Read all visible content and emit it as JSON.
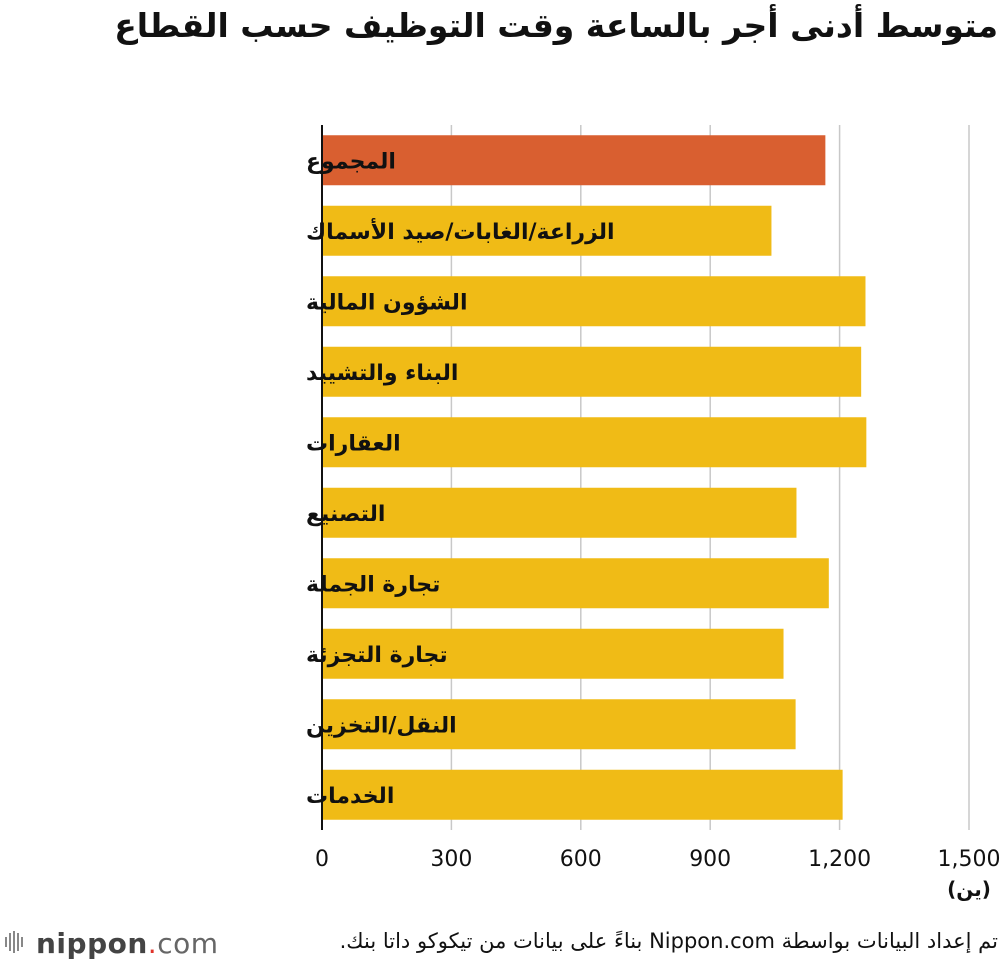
{
  "chart_data": {
    "type": "bar",
    "orientation": "horizontal",
    "title": "متوسط أدنى أجر بالساعة وقت التوظيف حسب القطاع",
    "categories": [
      "المجموع",
      "الزراعة/الغابات/صيد الأسماك",
      "الشؤون المالية",
      "البناء والتشييد",
      "العقارات",
      "التصنيع",
      "تجارة الجملة",
      "تجارة التجزئة",
      "النقل/التخزين",
      "الخدمات"
    ],
    "values": [
      1167,
      1042,
      1260,
      1250,
      1262,
      1100,
      1175,
      1070,
      1098,
      1207
    ],
    "xlim": [
      0,
      1500
    ],
    "ticks": [
      "0",
      "300",
      "600",
      "900",
      "1,200",
      "1,500"
    ],
    "tick_values": [
      0,
      300,
      600,
      900,
      1200,
      1500
    ],
    "unit_label": "(ين)",
    "grid": true,
    "colors": {
      "total": "#d95f30",
      "sector": "#f0bb16",
      "grid": "#c8c8c8",
      "axis": "#111111"
    }
  },
  "footer": {
    "source": "تم إعداد البيانات بواسطة Nippon.com بناءً على بيانات من تيكوكو داتا بنك.",
    "logo_name": "nippon",
    "logo_dot": ".",
    "logo_com": "com",
    "logo_icon": "nippon-logo-icon"
  }
}
